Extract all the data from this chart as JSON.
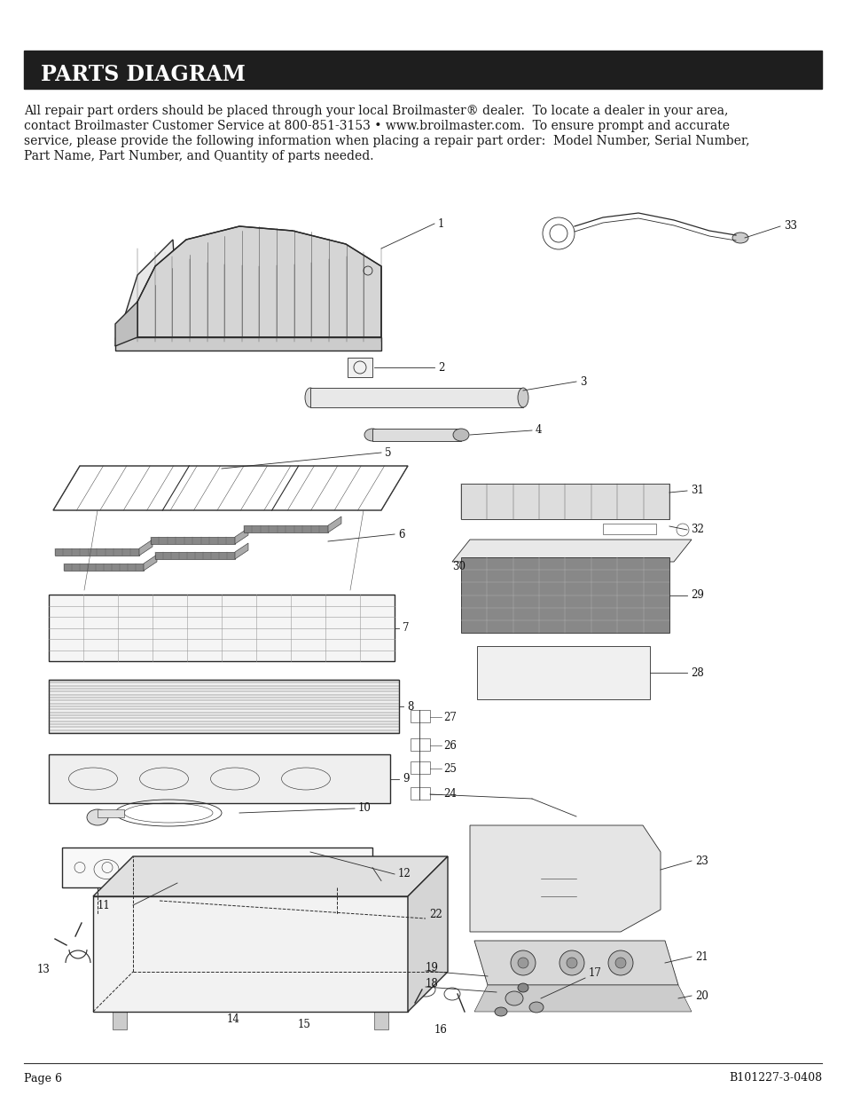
{
  "bg_color": "#ffffff",
  "header_bg": "#1e1e1e",
  "header_text": "PARTS DIAGRAM",
  "header_text_color": "#ffffff",
  "header_font_size": 17,
  "body_text_line1": "All repair part orders should be placed through your local Broilmaster® dealer.  To locate a dealer in your area,",
  "body_text_line2": "contact Broilmaster Customer Service at 800-851-3153 • www.broilmaster.com.  To ensure prompt and accurate",
  "body_text_line3": "service, please provide the following information when placing a repair part order:  Model Number, Serial Number,",
  "body_text_line4": "Part Name, Part Number, and Quantity of parts needed.",
  "body_font_size": 10,
  "footer_left": "Page 6",
  "footer_right": "B101227-3-0408",
  "footer_font_size": 9,
  "line_color": "#2a2a2a",
  "lw_main": 1.0,
  "lw_thin": 0.6,
  "lw_xtra": 0.4,
  "lw_dash": 0.7
}
